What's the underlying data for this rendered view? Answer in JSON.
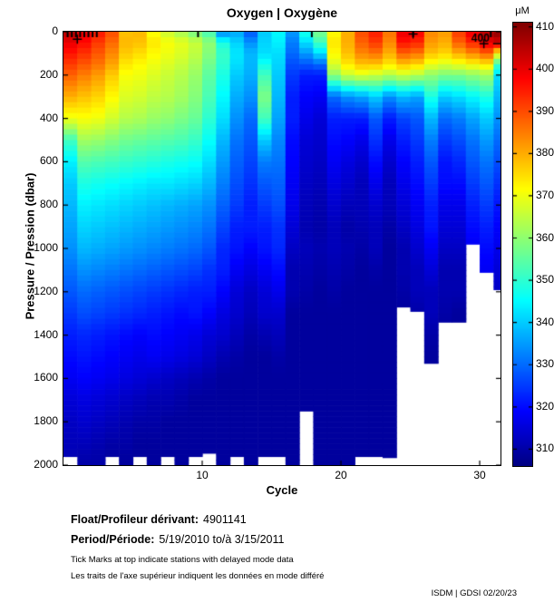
{
  "title": "Oxygen | Oxygène",
  "axes": {
    "xlabel": "Cycle",
    "ylabel": "Pressure / Pression (dbar)",
    "x_ticks": [
      10,
      20,
      30
    ],
    "y_ticks": [
      0,
      200,
      400,
      600,
      800,
      1000,
      1200,
      1400,
      1600,
      1800,
      2000
    ],
    "x_max": 31.5,
    "y_max": 2000
  },
  "colorbar": {
    "unit_label": "μM",
    "min": 306,
    "max": 411,
    "ticks": [
      410,
      400,
      390,
      380,
      370,
      360,
      350,
      340,
      330,
      320,
      310
    ]
  },
  "footer": {
    "float_label": "Float/Profileur dérivant:",
    "float_value": "4901141",
    "period_label": "Period/Période:",
    "period_value": "5/19/2010  to/à  3/15/2011",
    "note_en": "Tick Marks at top indicate stations with delayed mode data",
    "note_fr": "Les traits de l'axe supérieur indiquent les données en mode différé",
    "credit": "ISDM | GDSI  02/20/23"
  },
  "chart_data": {
    "type": "heatmap",
    "title": "Oxygen | Oxygène",
    "xlabel": "Cycle",
    "ylabel": "Pressure / Pression (dbar)",
    "colormap": "jet",
    "value_unit": "μM",
    "value_range": [
      306,
      411
    ],
    "x_range": [
      0,
      31.5
    ],
    "y_range": [
      0,
      2000
    ],
    "depths": [
      0,
      50,
      100,
      150,
      200,
      300,
      400,
      500,
      600,
      700,
      800,
      900,
      1000,
      1100,
      1200,
      1300,
      1400,
      1500,
      1600,
      1700,
      1800,
      1900,
      2000
    ],
    "delayed_mode_tick_cycles": [
      0.3,
      0.6,
      0.9,
      1.2,
      1.5,
      1.8,
      2.1,
      2.4,
      9.7,
      17.9,
      25.2,
      30.8
    ],
    "annotations": [
      {
        "type": "marker",
        "x": 1.0,
        "y": 35
      },
      {
        "type": "marker",
        "x": 25.2,
        "y": 10
      },
      {
        "type": "marker",
        "x": 30.3,
        "y": 55
      },
      {
        "type": "dash",
        "x": 30.7,
        "y": 55
      },
      {
        "type": "text",
        "x": 29.4,
        "y": 38,
        "text": "400"
      }
    ],
    "profiles": [
      {
        "cycle": 1,
        "max_depth": 1960,
        "values": [
          405,
          400,
          396,
          392,
          388,
          380,
          370,
          352,
          344,
          340,
          338,
          336,
          334,
          331,
          328,
          325,
          322,
          320,
          318,
          315,
          313,
          312,
          311
        ]
      },
      {
        "cycle": 2,
        "max_depth": 2000,
        "values": [
          400,
          397,
          393,
          389,
          385,
          378,
          371,
          362,
          354,
          348,
          344,
          341,
          338,
          334,
          330,
          327,
          323,
          321,
          319,
          316,
          314,
          312,
          310
        ]
      },
      {
        "cycle": 3,
        "max_depth": 2000,
        "values": [
          396,
          392,
          389,
          386,
          382,
          376,
          370,
          361,
          353,
          347,
          343,
          340,
          337,
          333,
          329,
          326,
          322,
          320,
          318,
          315,
          313,
          311,
          310
        ]
      },
      {
        "cycle": 4,
        "max_depth": 1960,
        "values": [
          390,
          387,
          384,
          381,
          377,
          372,
          367,
          359,
          352,
          346,
          342,
          339,
          336,
          332,
          328,
          325,
          321,
          319,
          317,
          314,
          312,
          310,
          309
        ]
      },
      {
        "cycle": 5,
        "max_depth": 2000,
        "values": [
          378,
          379,
          377,
          374,
          371,
          368,
          364,
          357,
          351,
          345,
          341,
          338,
          335,
          331,
          327,
          324,
          320,
          318,
          316,
          313,
          311,
          310,
          309
        ]
      },
      {
        "cycle": 6,
        "max_depth": 1960,
        "values": [
          379,
          378,
          375,
          372,
          370,
          367,
          363,
          356,
          350,
          344,
          340,
          337,
          334,
          330,
          326,
          323,
          319,
          317,
          315,
          312,
          310,
          309,
          309
        ]
      },
      {
        "cycle": 7,
        "max_depth": 2000,
        "values": [
          371,
          374,
          372,
          370,
          368,
          365,
          361,
          355,
          349,
          343,
          339,
          336,
          333,
          329,
          325,
          322,
          320,
          318,
          314,
          311,
          310,
          309,
          309
        ]
      },
      {
        "cycle": 8,
        "max_depth": 1960,
        "values": [
          366,
          371,
          370,
          368,
          366,
          364,
          360,
          354,
          348,
          343,
          338,
          335,
          332,
          328,
          324,
          321,
          319,
          317,
          313,
          311,
          309,
          309,
          309
        ]
      },
      {
        "cycle": 9,
        "max_depth": 2000,
        "values": [
          362,
          369,
          368,
          366,
          364,
          362,
          358,
          353,
          347,
          342,
          337,
          334,
          331,
          327,
          323,
          320,
          318,
          316,
          312,
          310,
          309,
          309,
          309
        ]
      },
      {
        "cycle": 10,
        "max_depth": 1960,
        "values": [
          357,
          366,
          365,
          363,
          361,
          359,
          356,
          351,
          346,
          341,
          336,
          333,
          330,
          326,
          322,
          321,
          317,
          315,
          311,
          309,
          309,
          309,
          309
        ]
      },
      {
        "cycle": 11,
        "max_depth": 1945,
        "values": [
          352,
          360,
          359,
          357,
          355,
          353,
          350,
          346,
          342,
          338,
          334,
          331,
          328,
          324,
          322,
          319,
          315,
          313,
          310,
          309,
          309,
          309,
          309
        ]
      },
      {
        "cycle": 12,
        "max_depth": 2000,
        "values": [
          332,
          348,
          351,
          350,
          348,
          345,
          342,
          338,
          335,
          332,
          329,
          326,
          323,
          322,
          319,
          316,
          314,
          311,
          309,
          309,
          309,
          309,
          309
        ]
      },
      {
        "cycle": 13,
        "max_depth": 1960,
        "values": [
          336,
          341,
          343,
          342,
          340,
          337,
          334,
          331,
          329,
          327,
          325,
          322,
          321,
          318,
          315,
          314,
          312,
          310,
          309,
          309,
          309,
          309,
          309
        ]
      },
      {
        "cycle": 14,
        "max_depth": 2000,
        "values": [
          328,
          334,
          338,
          338,
          337,
          334,
          330,
          328,
          326,
          324,
          322,
          322,
          319,
          316,
          313,
          312,
          310,
          309,
          309,
          309,
          309,
          309,
          309
        ]
      },
      {
        "cycle": 15,
        "max_depth": 1960,
        "values": [
          340,
          341,
          342,
          347,
          352,
          358,
          352,
          340,
          332,
          328,
          325,
          322,
          321,
          318,
          315,
          314,
          311,
          309,
          309,
          309,
          309,
          309,
          309
        ]
      },
      {
        "cycle": 16,
        "max_depth": 1960,
        "values": [
          345,
          344,
          342,
          341,
          340,
          338,
          336,
          333,
          331,
          329,
          327,
          324,
          323,
          320,
          317,
          314,
          312,
          310,
          309,
          309,
          309,
          309,
          309
        ]
      },
      {
        "cycle": 17,
        "max_depth": 2000,
        "values": [
          335,
          332,
          330,
          327,
          325,
          322,
          322,
          320,
          319,
          318,
          317,
          315,
          313,
          311,
          311,
          309,
          309,
          309,
          309,
          309,
          309,
          309,
          309
        ]
      },
      {
        "cycle": 18,
        "max_depth": 1750,
        "values": [
          348,
          342,
          335,
          328,
          322,
          319,
          317,
          315,
          314,
          313,
          312,
          311,
          312,
          311,
          310,
          309,
          309,
          309,
          309,
          309,
          309,
          309,
          309
        ]
      },
      {
        "cycle": 19,
        "max_depth": 2000,
        "values": [
          358,
          352,
          342,
          330,
          322,
          318,
          315,
          314,
          313,
          312,
          311,
          310,
          311,
          310,
          309,
          309,
          309,
          309,
          309,
          309,
          309,
          309,
          309
        ]
      },
      {
        "cycle": 20,
        "max_depth": 2000,
        "values": [
          372,
          374,
          372,
          368,
          360,
          330,
          322,
          320,
          318,
          316,
          314,
          312,
          312,
          311,
          310,
          309,
          309,
          309,
          309,
          309,
          309,
          309,
          309
        ]
      },
      {
        "cycle": 21,
        "max_depth": 2000,
        "values": [
          380,
          380,
          378,
          374,
          366,
          334,
          322,
          319,
          316,
          314,
          312,
          310,
          311,
          310,
          309,
          309,
          309,
          309,
          309,
          309,
          309,
          309,
          309
        ]
      },
      {
        "cycle": 22,
        "max_depth": 1960,
        "values": [
          390,
          388,
          384,
          378,
          368,
          336,
          322,
          317,
          314,
          312,
          312,
          311,
          310,
          309,
          309,
          309,
          309,
          309,
          309,
          309,
          309,
          309,
          309
        ]
      },
      {
        "cycle": 23,
        "max_depth": 1960,
        "values": [
          395,
          392,
          386,
          378,
          366,
          340,
          328,
          324,
          320,
          317,
          314,
          312,
          312,
          310,
          309,
          309,
          309,
          309,
          309,
          309,
          309,
          309,
          309
        ]
      },
      {
        "cycle": 24,
        "max_depth": 1965,
        "values": [
          386,
          384,
          380,
          374,
          364,
          334,
          322,
          317,
          314,
          312,
          312,
          310,
          309,
          309,
          309,
          309,
          309,
          309,
          309,
          309,
          309,
          309,
          309
        ]
      },
      {
        "cycle": 25,
        "max_depth": 1270,
        "values": [
          400,
          396,
          388,
          378,
          366,
          338,
          326,
          322,
          319,
          317,
          315,
          313,
          311,
          311,
          310,
          309,
          309,
          309,
          309,
          309,
          309,
          309,
          309
        ]
      },
      {
        "cycle": 26,
        "max_depth": 1290,
        "values": [
          398,
          394,
          386,
          376,
          364,
          336,
          328,
          325,
          322,
          320,
          318,
          316,
          314,
          312,
          312,
          310,
          309,
          309,
          309,
          309,
          309,
          309,
          309
        ]
      },
      {
        "cycle": 27,
        "max_depth": 1530,
        "values": [
          384,
          382,
          378,
          370,
          360,
          348,
          338,
          332,
          328,
          325,
          322,
          321,
          318,
          315,
          312,
          312,
          310,
          309,
          309,
          309,
          309,
          309,
          309
        ]
      },
      {
        "cycle": 28,
        "max_depth": 1340,
        "values": [
          382,
          380,
          376,
          368,
          358,
          340,
          330,
          325,
          321,
          320,
          317,
          315,
          313,
          311,
          311,
          310,
          309,
          309,
          309,
          309,
          309,
          309,
          309
        ]
      },
      {
        "cycle": 29,
        "max_depth": 1340,
        "values": [
          392,
          388,
          380,
          370,
          358,
          342,
          332,
          327,
          323,
          320,
          317,
          315,
          313,
          311,
          311,
          309,
          309,
          309,
          309,
          309,
          309,
          309,
          309
        ]
      },
      {
        "cycle": 30,
        "max_depth": 980,
        "values": [
          400,
          394,
          384,
          372,
          360,
          345,
          336,
          331,
          328,
          325,
          322,
          320,
          318,
          316,
          314,
          312,
          312,
          310,
          310,
          309,
          309,
          309,
          309
        ]
      },
      {
        "cycle": 31,
        "max_depth": 1110,
        "values": [
          406,
          400,
          388,
          374,
          362,
          348,
          340,
          335,
          331,
          328,
          325,
          322,
          320,
          318,
          316,
          314,
          312,
          312,
          310,
          310,
          309,
          309,
          309
        ]
      },
      {
        "cycle": 32,
        "max_depth": 1190,
        "values": [
          410,
          402,
          372,
          352,
          342,
          338,
          334,
          330,
          327,
          324,
          321,
          319,
          317,
          315,
          313,
          311,
          311,
          309,
          309,
          309,
          309,
          309,
          309
        ]
      }
    ]
  }
}
